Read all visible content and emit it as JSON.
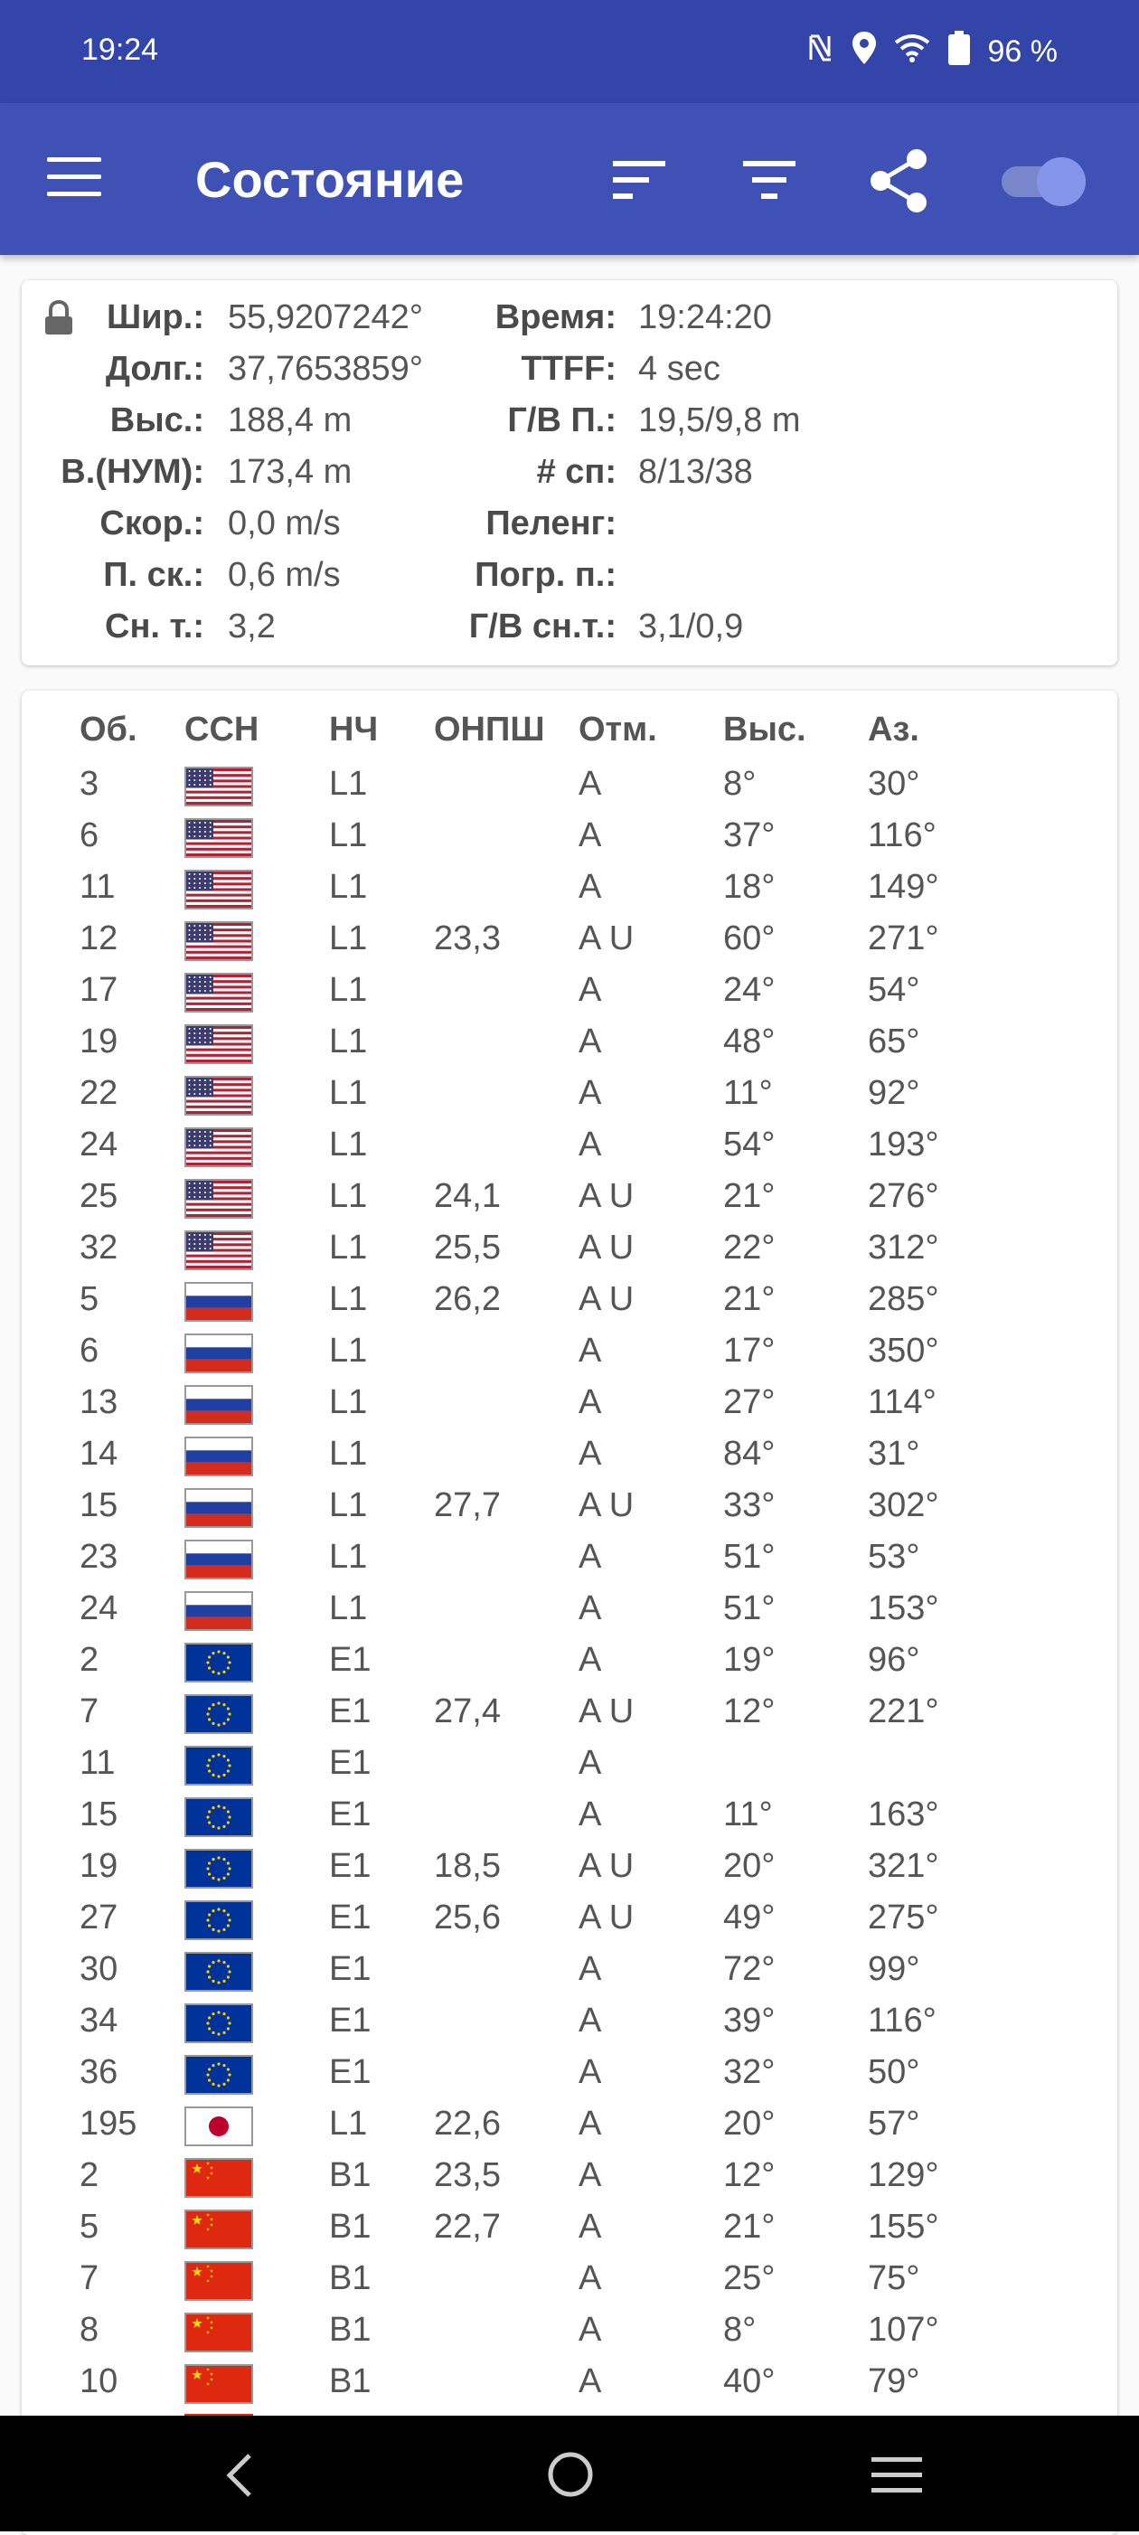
{
  "status_bar": {
    "time": "19:24",
    "battery": "96 %"
  },
  "app_bar": {
    "title": "Состояние"
  },
  "info": {
    "left": [
      {
        "label": "Шир.:",
        "value": "55,9207242°"
      },
      {
        "label": "Долг.:",
        "value": "37,7653859°"
      },
      {
        "label": "Выс.:",
        "value": "188,4 m"
      },
      {
        "label": "В.(НУМ):",
        "value": "173,4 m"
      },
      {
        "label": "Скор.:",
        "value": "0,0 m/s"
      },
      {
        "label": "П. ск.:",
        "value": "0,6 m/s"
      },
      {
        "label": "Сн. т.:",
        "value": "3,2"
      }
    ],
    "right": [
      {
        "label": "Время:",
        "value": "19:24:20"
      },
      {
        "label": "TTFF:",
        "value": "4 sec"
      },
      {
        "label": "Г/В П.:",
        "value": "19,5/9,8 m"
      },
      {
        "label": "# сп:",
        "value": "8/13/38"
      },
      {
        "label": "Пеленг:",
        "value": ""
      },
      {
        "label": "Погр. п.:",
        "value": ""
      },
      {
        "label": "Г/В сн.т.:",
        "value": "3,1/0,9"
      }
    ]
  },
  "table": {
    "headers": [
      "Об.",
      "ССН",
      "НЧ",
      "ОНПШ",
      "Отм.",
      "Выс.",
      "Аз."
    ],
    "rows": [
      {
        "id": "3",
        "flag": "usa",
        "band": "L1",
        "snr": "",
        "flags": "A",
        "elev": "8°",
        "az": "30°"
      },
      {
        "id": "6",
        "flag": "usa",
        "band": "L1",
        "snr": "",
        "flags": "A",
        "elev": "37°",
        "az": "116°"
      },
      {
        "id": "11",
        "flag": "usa",
        "band": "L1",
        "snr": "",
        "flags": "A",
        "elev": "18°",
        "az": "149°"
      },
      {
        "id": "12",
        "flag": "usa",
        "band": "L1",
        "snr": "23,3",
        "flags": "A U",
        "elev": "60°",
        "az": "271°"
      },
      {
        "id": "17",
        "flag": "usa",
        "band": "L1",
        "snr": "",
        "flags": "A",
        "elev": "24°",
        "az": "54°"
      },
      {
        "id": "19",
        "flag": "usa",
        "band": "L1",
        "snr": "",
        "flags": "A",
        "elev": "48°",
        "az": "65°"
      },
      {
        "id": "22",
        "flag": "usa",
        "band": "L1",
        "snr": "",
        "flags": "A",
        "elev": "11°",
        "az": "92°"
      },
      {
        "id": "24",
        "flag": "usa",
        "band": "L1",
        "snr": "",
        "flags": "A",
        "elev": "54°",
        "az": "193°"
      },
      {
        "id": "25",
        "flag": "usa",
        "band": "L1",
        "snr": "24,1",
        "flags": "A U",
        "elev": "21°",
        "az": "276°"
      },
      {
        "id": "32",
        "flag": "usa",
        "band": "L1",
        "snr": "25,5",
        "flags": "A U",
        "elev": "22°",
        "az": "312°"
      },
      {
        "id": "5",
        "flag": "russia",
        "band": "L1",
        "snr": "26,2",
        "flags": "A U",
        "elev": "21°",
        "az": "285°"
      },
      {
        "id": "6",
        "flag": "russia",
        "band": "L1",
        "snr": "",
        "flags": "A",
        "elev": "17°",
        "az": "350°"
      },
      {
        "id": "13",
        "flag": "russia",
        "band": "L1",
        "snr": "",
        "flags": "A",
        "elev": "27°",
        "az": "114°"
      },
      {
        "id": "14",
        "flag": "russia",
        "band": "L1",
        "snr": "",
        "flags": "A",
        "elev": "84°",
        "az": "31°"
      },
      {
        "id": "15",
        "flag": "russia",
        "band": "L1",
        "snr": "27,7",
        "flags": "A U",
        "elev": "33°",
        "az": "302°"
      },
      {
        "id": "23",
        "flag": "russia",
        "band": "L1",
        "snr": "",
        "flags": "A",
        "elev": "51°",
        "az": "53°"
      },
      {
        "id": "24",
        "flag": "russia",
        "band": "L1",
        "snr": "",
        "flags": "A",
        "elev": "51°",
        "az": "153°"
      },
      {
        "id": "2",
        "flag": "eu",
        "band": "E1",
        "snr": "",
        "flags": "A",
        "elev": "19°",
        "az": "96°"
      },
      {
        "id": "7",
        "flag": "eu",
        "band": "E1",
        "snr": "27,4",
        "flags": "A U",
        "elev": "12°",
        "az": "221°"
      },
      {
        "id": "11",
        "flag": "eu",
        "band": "E1",
        "snr": "",
        "flags": "A",
        "elev": "",
        "az": ""
      },
      {
        "id": "15",
        "flag": "eu",
        "band": "E1",
        "snr": "",
        "flags": "A",
        "elev": "11°",
        "az": "163°"
      },
      {
        "id": "19",
        "flag": "eu",
        "band": "E1",
        "snr": "18,5",
        "flags": "A U",
        "elev": "20°",
        "az": "321°"
      },
      {
        "id": "27",
        "flag": "eu",
        "band": "E1",
        "snr": "25,6",
        "flags": "A U",
        "elev": "49°",
        "az": "275°"
      },
      {
        "id": "30",
        "flag": "eu",
        "band": "E1",
        "snr": "",
        "flags": "A",
        "elev": "72°",
        "az": "99°"
      },
      {
        "id": "34",
        "flag": "eu",
        "band": "E1",
        "snr": "",
        "flags": "A",
        "elev": "39°",
        "az": "116°"
      },
      {
        "id": "36",
        "flag": "eu",
        "band": "E1",
        "snr": "",
        "flags": "A",
        "elev": "32°",
        "az": "50°"
      },
      {
        "id": "195",
        "flag": "japan",
        "band": "L1",
        "snr": "22,6",
        "flags": "A",
        "elev": "20°",
        "az": "57°"
      },
      {
        "id": "2",
        "flag": "china",
        "band": "B1",
        "snr": "23,5",
        "flags": "A",
        "elev": "12°",
        "az": "129°"
      },
      {
        "id": "5",
        "flag": "china",
        "band": "B1",
        "snr": "22,7",
        "flags": "A",
        "elev": "21°",
        "az": "155°"
      },
      {
        "id": "7",
        "flag": "china",
        "band": "B1",
        "snr": "",
        "flags": "A",
        "elev": "25°",
        "az": "75°"
      },
      {
        "id": "8",
        "flag": "china",
        "band": "B1",
        "snr": "",
        "flags": "A",
        "elev": "8°",
        "az": "107°"
      },
      {
        "id": "10",
        "flag": "china",
        "band": "B1",
        "snr": "",
        "flags": "A",
        "elev": "40°",
        "az": "79°"
      }
    ]
  },
  "colors": {
    "statusbar": "#3345a8",
    "appbar": "#3f51b5",
    "accent": "#7986cb"
  }
}
